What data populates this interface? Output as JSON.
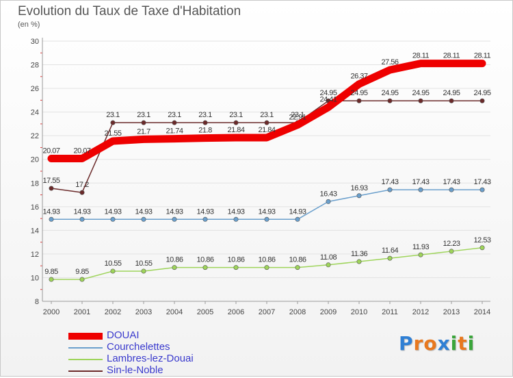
{
  "header": {
    "title": "Evolution du Taux de Taxe d'Habitation",
    "subtitle": "(en %)"
  },
  "logo": {
    "letters": [
      "P",
      "r",
      "o",
      "x",
      "i",
      "t",
      "i"
    ],
    "colors": [
      "#2f7fd4",
      "#e8781e",
      "#e8781e",
      "#2f7fd4",
      "#3aa63a",
      "#e8781e",
      "#3aa63a"
    ]
  },
  "chart_data": {
    "type": "line",
    "title": "Evolution du Taux de Taxe d'Habitation",
    "ylabel": "(en %)",
    "xlabel": "",
    "ylim": [
      8,
      30
    ],
    "yticks": [
      "8",
      "10",
      "12",
      "14",
      "16",
      "18",
      "20",
      "22",
      "24",
      "26",
      "28",
      "30"
    ],
    "categories": [
      "2000",
      "2001",
      "2002",
      "2003",
      "2004",
      "2005",
      "2006",
      "2007",
      "2008",
      "2009",
      "2010",
      "2011",
      "2012",
      "2013",
      "2014"
    ],
    "grid": "horizontal",
    "legend_position": "bottom-left",
    "series": [
      {
        "name": "DOUAI",
        "color": "#ee0000",
        "values": [
          20.07,
          20.07,
          21.55,
          21.7,
          21.74,
          21.8,
          21.84,
          21.84,
          22.91,
          24.41,
          26.37,
          27.56,
          28.11,
          28.11,
          28.11
        ],
        "labels": [
          "20.07",
          "20.07",
          "21.55",
          "21.7",
          "21.74",
          "21.8",
          "21.84",
          "21.84",
          "22.91",
          "24.41",
          "26.37",
          "27.56",
          "28.11",
          "28.11",
          "28.11"
        ]
      },
      {
        "name": "Courchelettes",
        "color": "#6a9fcc",
        "values": [
          14.93,
          14.93,
          14.93,
          14.93,
          14.93,
          14.93,
          14.93,
          14.93,
          14.93,
          16.43,
          16.93,
          17.43,
          17.43,
          17.43,
          17.43
        ],
        "labels": [
          "14.93",
          "14.93",
          "14.93",
          "14.93",
          "14.93",
          "14.93",
          "14.93",
          "14.93",
          "14.93",
          "16.43",
          "16.93",
          "17.43",
          "17.43",
          "17.43",
          "17.43"
        ]
      },
      {
        "name": "Lambres-lez-Douai",
        "color": "#9ed45a",
        "values": [
          9.85,
          9.85,
          10.55,
          10.55,
          10.86,
          10.86,
          10.86,
          10.86,
          10.86,
          11.08,
          11.36,
          11.64,
          11.93,
          12.23,
          12.53
        ],
        "labels": [
          "9.85",
          "9.85",
          "10.55",
          "10.55",
          "10.86",
          "10.86",
          "10.86",
          "10.86",
          "10.86",
          "11.08",
          "11.36",
          "11.64",
          "11.93",
          "12.23",
          "12.53"
        ]
      },
      {
        "name": "Sin-le-Noble",
        "color": "#6b2a2a",
        "values": [
          17.55,
          17.2,
          23.1,
          23.1,
          23.1,
          23.1,
          23.1,
          23.1,
          23.1,
          24.95,
          24.95,
          24.95,
          24.95,
          24.95,
          24.95
        ],
        "labels": [
          "17.55",
          "17.2",
          "23.1",
          "23.1",
          "23.1",
          "23.1",
          "23.1",
          "23.1",
          "23.1",
          "24.95",
          "24.95",
          "24.95",
          "24.95",
          "24.95",
          "24.95"
        ]
      }
    ]
  }
}
